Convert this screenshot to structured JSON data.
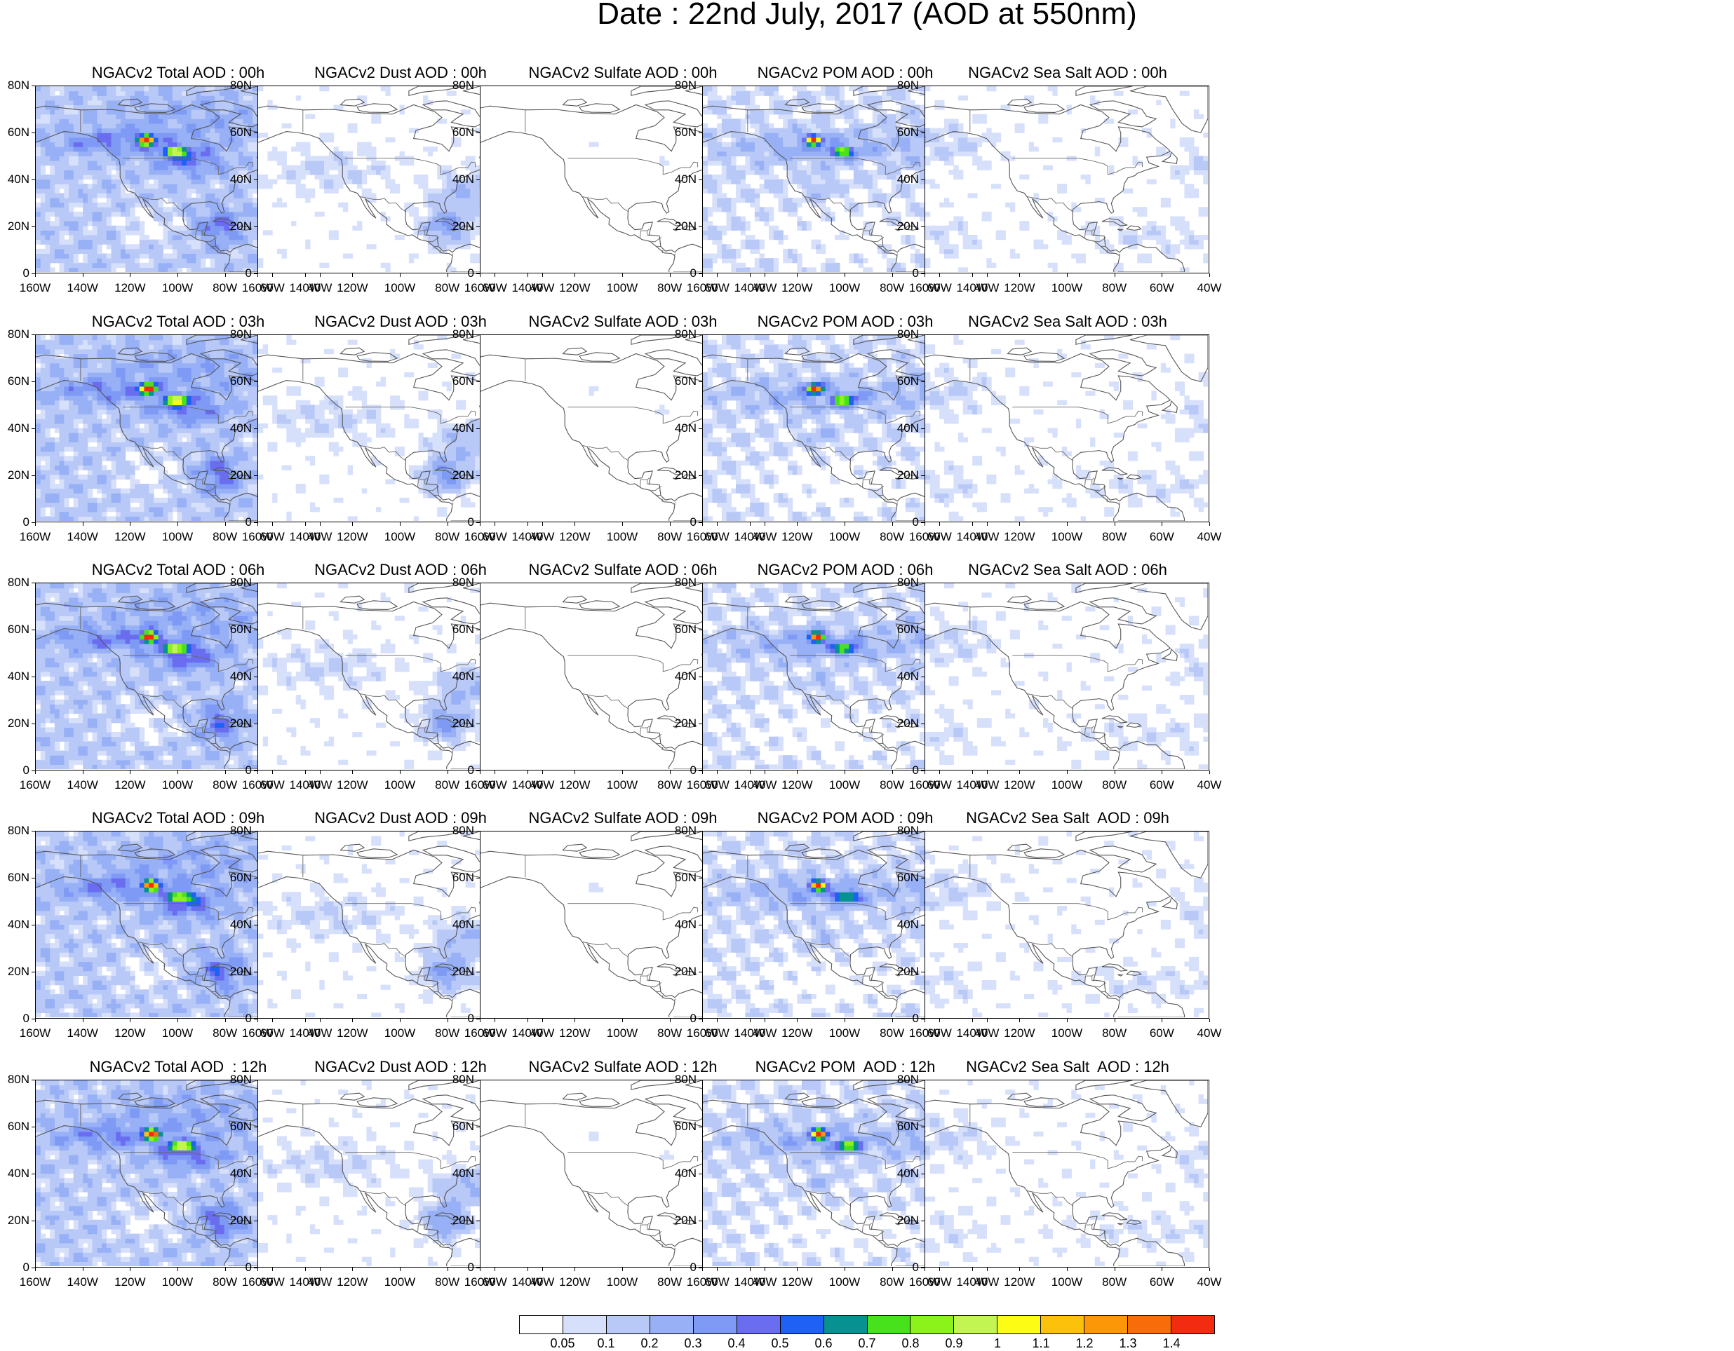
{
  "title": "Date : 22nd July, 2017 (AOD at 550nm)",
  "lat_labels": [
    "80N",
    "60N",
    "40N",
    "20N",
    "0"
  ],
  "lon_labels": [
    "160W",
    "140W",
    "120W",
    "100W",
    "80W",
    "60W",
    "40W"
  ],
  "panels": [
    [
      {
        "title": "NGACv2 Total AOD : 00h",
        "species": "total",
        "hour": "00h"
      },
      {
        "title": "NGACv2 Dust AOD : 00h",
        "species": "dust",
        "hour": "00h"
      },
      {
        "title": "NGACv2 Sulfate AOD : 00h",
        "species": "sulfate",
        "hour": "00h"
      },
      {
        "title": "NGACv2 POM AOD : 00h",
        "species": "pom",
        "hour": "00h"
      },
      {
        "title": "NGACv2 Sea Salt AOD : 00h",
        "species": "seasalt",
        "hour": "00h"
      }
    ],
    [
      {
        "title": "NGACv2 Total AOD : 03h",
        "species": "total",
        "hour": "03h"
      },
      {
        "title": "NGACv2 Dust AOD : 03h",
        "species": "dust",
        "hour": "03h"
      },
      {
        "title": "NGACv2 Sulfate AOD : 03h",
        "species": "sulfate",
        "hour": "03h"
      },
      {
        "title": "NGACv2 POM AOD : 03h",
        "species": "pom",
        "hour": "03h"
      },
      {
        "title": "NGACv2 Sea Salt AOD : 03h",
        "species": "seasalt",
        "hour": "03h"
      }
    ],
    [
      {
        "title": "NGACv2 Total AOD : 06h",
        "species": "total",
        "hour": "06h"
      },
      {
        "title": "NGACv2 Dust AOD : 06h",
        "species": "dust",
        "hour": "06h"
      },
      {
        "title": "NGACv2 Sulfate AOD : 06h",
        "species": "sulfate",
        "hour": "06h"
      },
      {
        "title": "NGACv2 POM AOD : 06h",
        "species": "pom",
        "hour": "06h"
      },
      {
        "title": "NGACv2 Sea Salt AOD : 06h",
        "species": "seasalt",
        "hour": "06h"
      }
    ],
    [
      {
        "title": "NGACv2 Total AOD : 09h",
        "species": "total",
        "hour": "09h"
      },
      {
        "title": "NGACv2 Dust AOD : 09h",
        "species": "dust",
        "hour": "09h"
      },
      {
        "title": "NGACv2 Sulfate AOD : 09h",
        "species": "sulfate",
        "hour": "09h"
      },
      {
        "title": "NGACv2 POM AOD : 09h",
        "species": "pom",
        "hour": "09h"
      },
      {
        "title": "NGACv2 Sea Salt  AOD : 09h",
        "species": "seasalt",
        "hour": "09h"
      }
    ],
    [
      {
        "title": "NGACv2 Total AOD  : 12h",
        "species": "total",
        "hour": "12h"
      },
      {
        "title": "NGACv2 Dust AOD : 12h",
        "species": "dust",
        "hour": "12h"
      },
      {
        "title": "NGACv2 Sulfate AOD : 12h",
        "species": "sulfate",
        "hour": "12h"
      },
      {
        "title": "NGACv2 POM  AOD : 12h",
        "species": "pom",
        "hour": "12h"
      },
      {
        "title": "NGACv2 Sea Salt  AOD : 12h",
        "species": "seasalt",
        "hour": "12h"
      }
    ]
  ],
  "colorbar": {
    "labels": [
      "0.05",
      "0.1",
      "0.2",
      "0.3",
      "0.4",
      "0.5",
      "0.6",
      "0.7",
      "0.8",
      "0.9",
      "1",
      "1.1",
      "1.2",
      "1.3",
      "1.4"
    ],
    "colors": [
      "#ffffff",
      "#d7e0fb",
      "#b8c8f7",
      "#97b0f6",
      "#7f9af5",
      "#6a6df0",
      "#1f60f5",
      "#079291",
      "#47e21b",
      "#8bf21a",
      "#c3f552",
      "#fcfc15",
      "#fcc20b",
      "#fc9708",
      "#f86c0a",
      "#f32b10"
    ]
  },
  "map_colors": {
    "coast": "#555555",
    "border": "#666666"
  }
}
